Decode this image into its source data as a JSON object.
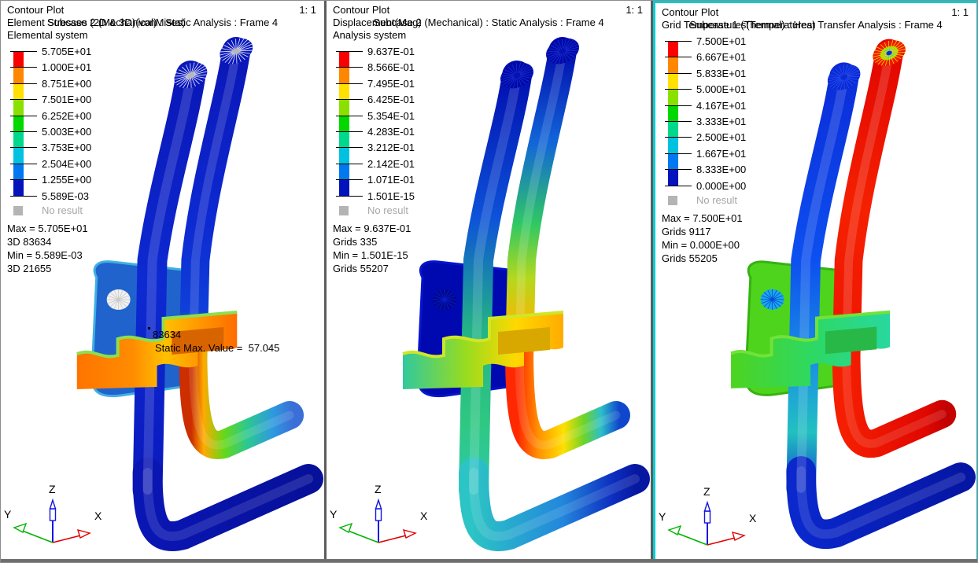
{
  "ui": {
    "background": "#ffffff",
    "panel_border": "#5c5c5c",
    "active_panel_border": "#00ccd4",
    "no_result_color": "#a6a6a6",
    "text_color": "#000000"
  },
  "legend_colors": [
    "#fb0000",
    "#ff8700",
    "#ffe000",
    "#8ae000",
    "#00d800",
    "#00d88c",
    "#00c2e0",
    "#0078f0",
    "#0414bc"
  ],
  "triad": {
    "z_label": "Z",
    "y_label": "Y",
    "x_label": "X",
    "z_color": "#1515e0",
    "y_color": "#00b400",
    "x_color": "#e00000"
  },
  "panels": [
    {
      "name": "stress-contour",
      "header": {
        "title": "Contour Plot",
        "scale": "1: 1",
        "result": "Element Stresses (2D & 3D)(vonMises)",
        "subcase": "Subcase 2 (Mechanical) : Static Analysis : Frame 4",
        "system": "Elemental system"
      },
      "legend": {
        "values": [
          "5.705E+01",
          "1.000E+01",
          "8.751E+00",
          "7.501E+00",
          "6.252E+00",
          "5.003E+00",
          "3.753E+00",
          "2.504E+00",
          "1.255E+00",
          "5.589E-03"
        ],
        "no_result": "No result"
      },
      "stats": [
        "Max = 5.705E+01",
        "3D 83634",
        "Min = 5.589E-03",
        "3D 21655"
      ],
      "annotation": {
        "entity": "83634",
        "text": "Static Max. Value =  57.045"
      },
      "model": {
        "bracket": {
          "base": "#2063cc",
          "edge": "#3fb0e2",
          "hole": "#f0f0f0",
          "hole_spokes": "#c8c8c8"
        },
        "clamp": {
          "stops": [
            [
              0,
              "#ff7300"
            ],
            [
              0.35,
              "#ff8c00"
            ],
            [
              0.55,
              "#ffc000"
            ],
            [
              0.78,
              "#ff9400"
            ],
            [
              1,
              "#ff6a00"
            ]
          ],
          "top": "#8ede4e",
          "slot": "#d86400"
        },
        "front": {
          "vert": [
            [
              0,
              "#0a16b6"
            ],
            [
              0.5,
              "#0d2ad2"
            ],
            [
              1,
              "#0a18bc"
            ]
          ],
          "run": [
            [
              0,
              "#0a16b4"
            ],
            [
              1,
              "#071099"
            ]
          ],
          "cap": {
            "base": "#0a18c0",
            "spokes": "#efefef",
            "center": "#b8b8b8"
          }
        },
        "back": {
          "vert": [
            [
              0,
              "#0a16b6"
            ],
            [
              0.55,
              "#0d2ad2"
            ],
            [
              0.82,
              "#0f3fd8"
            ],
            [
              0.92,
              "#18b06a"
            ],
            [
              1,
              "#34cc2e"
            ]
          ],
          "run": [
            [
              0,
              "#cc2e00"
            ],
            [
              0.12,
              "#ffaa00"
            ],
            [
              0.32,
              "#66d818"
            ],
            [
              0.55,
              "#2cc890"
            ],
            [
              0.8,
              "#2e9ade"
            ],
            [
              1,
              "#3a6fd8"
            ]
          ],
          "cap": {
            "base": "#0a18c0",
            "spokes": "#efefef",
            "center": "#b8b8b8"
          }
        }
      }
    },
    {
      "name": "displacement-contour",
      "header": {
        "title": "Contour Plot",
        "scale": "1: 1",
        "result": "Displacement(Mag)",
        "subcase": "Subcase 2 (Mechanical) : Static Analysis : Frame 4",
        "system": "Analysis system"
      },
      "legend": {
        "values": [
          "9.637E-01",
          "8.566E-01",
          "7.495E-01",
          "6.425E-01",
          "5.354E-01",
          "4.283E-01",
          "3.212E-01",
          "2.142E-01",
          "1.071E-01",
          "1.501E-15"
        ],
        "no_result": "No result"
      },
      "stats": [
        "Max = 9.637E-01",
        "Grids 335",
        "Min = 1.501E-15",
        "Grids 55207"
      ],
      "annotation": null,
      "model": {
        "bracket": {
          "base": "#0009b0",
          "edge": "#0614cf",
          "hole": "#000890",
          "hole_spokes": "#0a1ec8"
        },
        "clamp": {
          "stops": [
            [
              0,
              "#2ec8a0"
            ],
            [
              0.4,
              "#9adc1e"
            ],
            [
              0.7,
              "#ffd800"
            ],
            [
              1,
              "#ffaa00"
            ]
          ],
          "top": "#cfe628",
          "slot": "#d8a800"
        },
        "front": {
          "vert": [
            [
              0,
              "#0009ae"
            ],
            [
              0.35,
              "#0d52d8"
            ],
            [
              0.6,
              "#22b287"
            ],
            [
              0.82,
              "#2fc882"
            ],
            [
              1,
              "#2cc8b4"
            ]
          ],
          "run": [
            [
              0,
              "#2cc4c4"
            ],
            [
              0.55,
              "#2387dc"
            ],
            [
              0.85,
              "#0d2fc0"
            ],
            [
              1,
              "#0617a0"
            ]
          ],
          "cap": {
            "base": "#0009a8",
            "spokes": "#1a2ecf",
            "center": "#0611b4"
          }
        },
        "back": {
          "vert": [
            [
              0,
              "#0009ae"
            ],
            [
              0.3,
              "#1266d8"
            ],
            [
              0.55,
              "#2fc864"
            ],
            [
              0.72,
              "#b4d81c"
            ],
            [
              0.88,
              "#ffb400"
            ],
            [
              1,
              "#ff4600"
            ]
          ],
          "run": [
            [
              0,
              "#ff2800"
            ],
            [
              0.2,
              "#ff9000"
            ],
            [
              0.45,
              "#ffe000"
            ],
            [
              0.65,
              "#6ed428"
            ],
            [
              0.82,
              "#2cc0c8"
            ],
            [
              1,
              "#0f46cc"
            ]
          ],
          "cap": {
            "base": "#0009a8",
            "spokes": "#1a2ecf",
            "center": "#0611b4"
          }
        }
      }
    },
    {
      "name": "temperature-contour",
      "header": {
        "title": "Contour Plot",
        "scale": "1: 1",
        "result": "Grid Temperatures(Temperatures)",
        "subcase": "Subcase 1 (Thermal) : Heat Transfer Analysis : Frame 4",
        "system": null
      },
      "legend": {
        "values": [
          "7.500E+01",
          "6.667E+01",
          "5.833E+01",
          "5.000E+01",
          "4.167E+01",
          "3.333E+01",
          "2.500E+01",
          "1.667E+01",
          "8.333E+00",
          "0.000E+00"
        ],
        "no_result": "No result"
      },
      "stats": [
        "Max = 7.500E+01",
        "Grids 9117",
        "Min = 0.000E+00",
        "Grids 55205"
      ],
      "annotation": null,
      "model": {
        "bracket": {
          "base": "#4ed41c",
          "edge": "#35b212",
          "hole": "#18a8e8",
          "hole_spokes": "#0a46d8"
        },
        "clamp": {
          "stops": [
            [
              0,
              "#4ed41e"
            ],
            [
              0.5,
              "#2ed862"
            ],
            [
              1,
              "#28d8a0"
            ]
          ],
          "top": "#72e238",
          "slot": "#28b848"
        },
        "front": {
          "vert": [
            [
              0,
              "#0a2ad8"
            ],
            [
              0.45,
              "#0d50f0"
            ],
            [
              0.7,
              "#1b96e0"
            ],
            [
              0.84,
              "#22c0c0"
            ],
            [
              1,
              "#0c2fd0"
            ]
          ],
          "run": [
            [
              0,
              "#0a28cc"
            ],
            [
              1,
              "#0616a4"
            ]
          ],
          "cap": {
            "base": "#0a2ad8",
            "spokes": "#2a50ea",
            "center": "#0a2ad8"
          }
        },
        "back": {
          "vert": [
            [
              0,
              "#e20600"
            ],
            [
              0.5,
              "#f52000"
            ],
            [
              1,
              "#ee1400"
            ]
          ],
          "run": [
            [
              0,
              "#f51e00"
            ],
            [
              0.8,
              "#e00800"
            ],
            [
              1,
              "#c40202"
            ]
          ],
          "cap": {
            "base": "#f01800",
            "spokes": "#ffd400",
            "rings": [
              "#8ae000",
              "#00d0d8",
              "#0030e0"
            ]
          }
        }
      }
    }
  ]
}
